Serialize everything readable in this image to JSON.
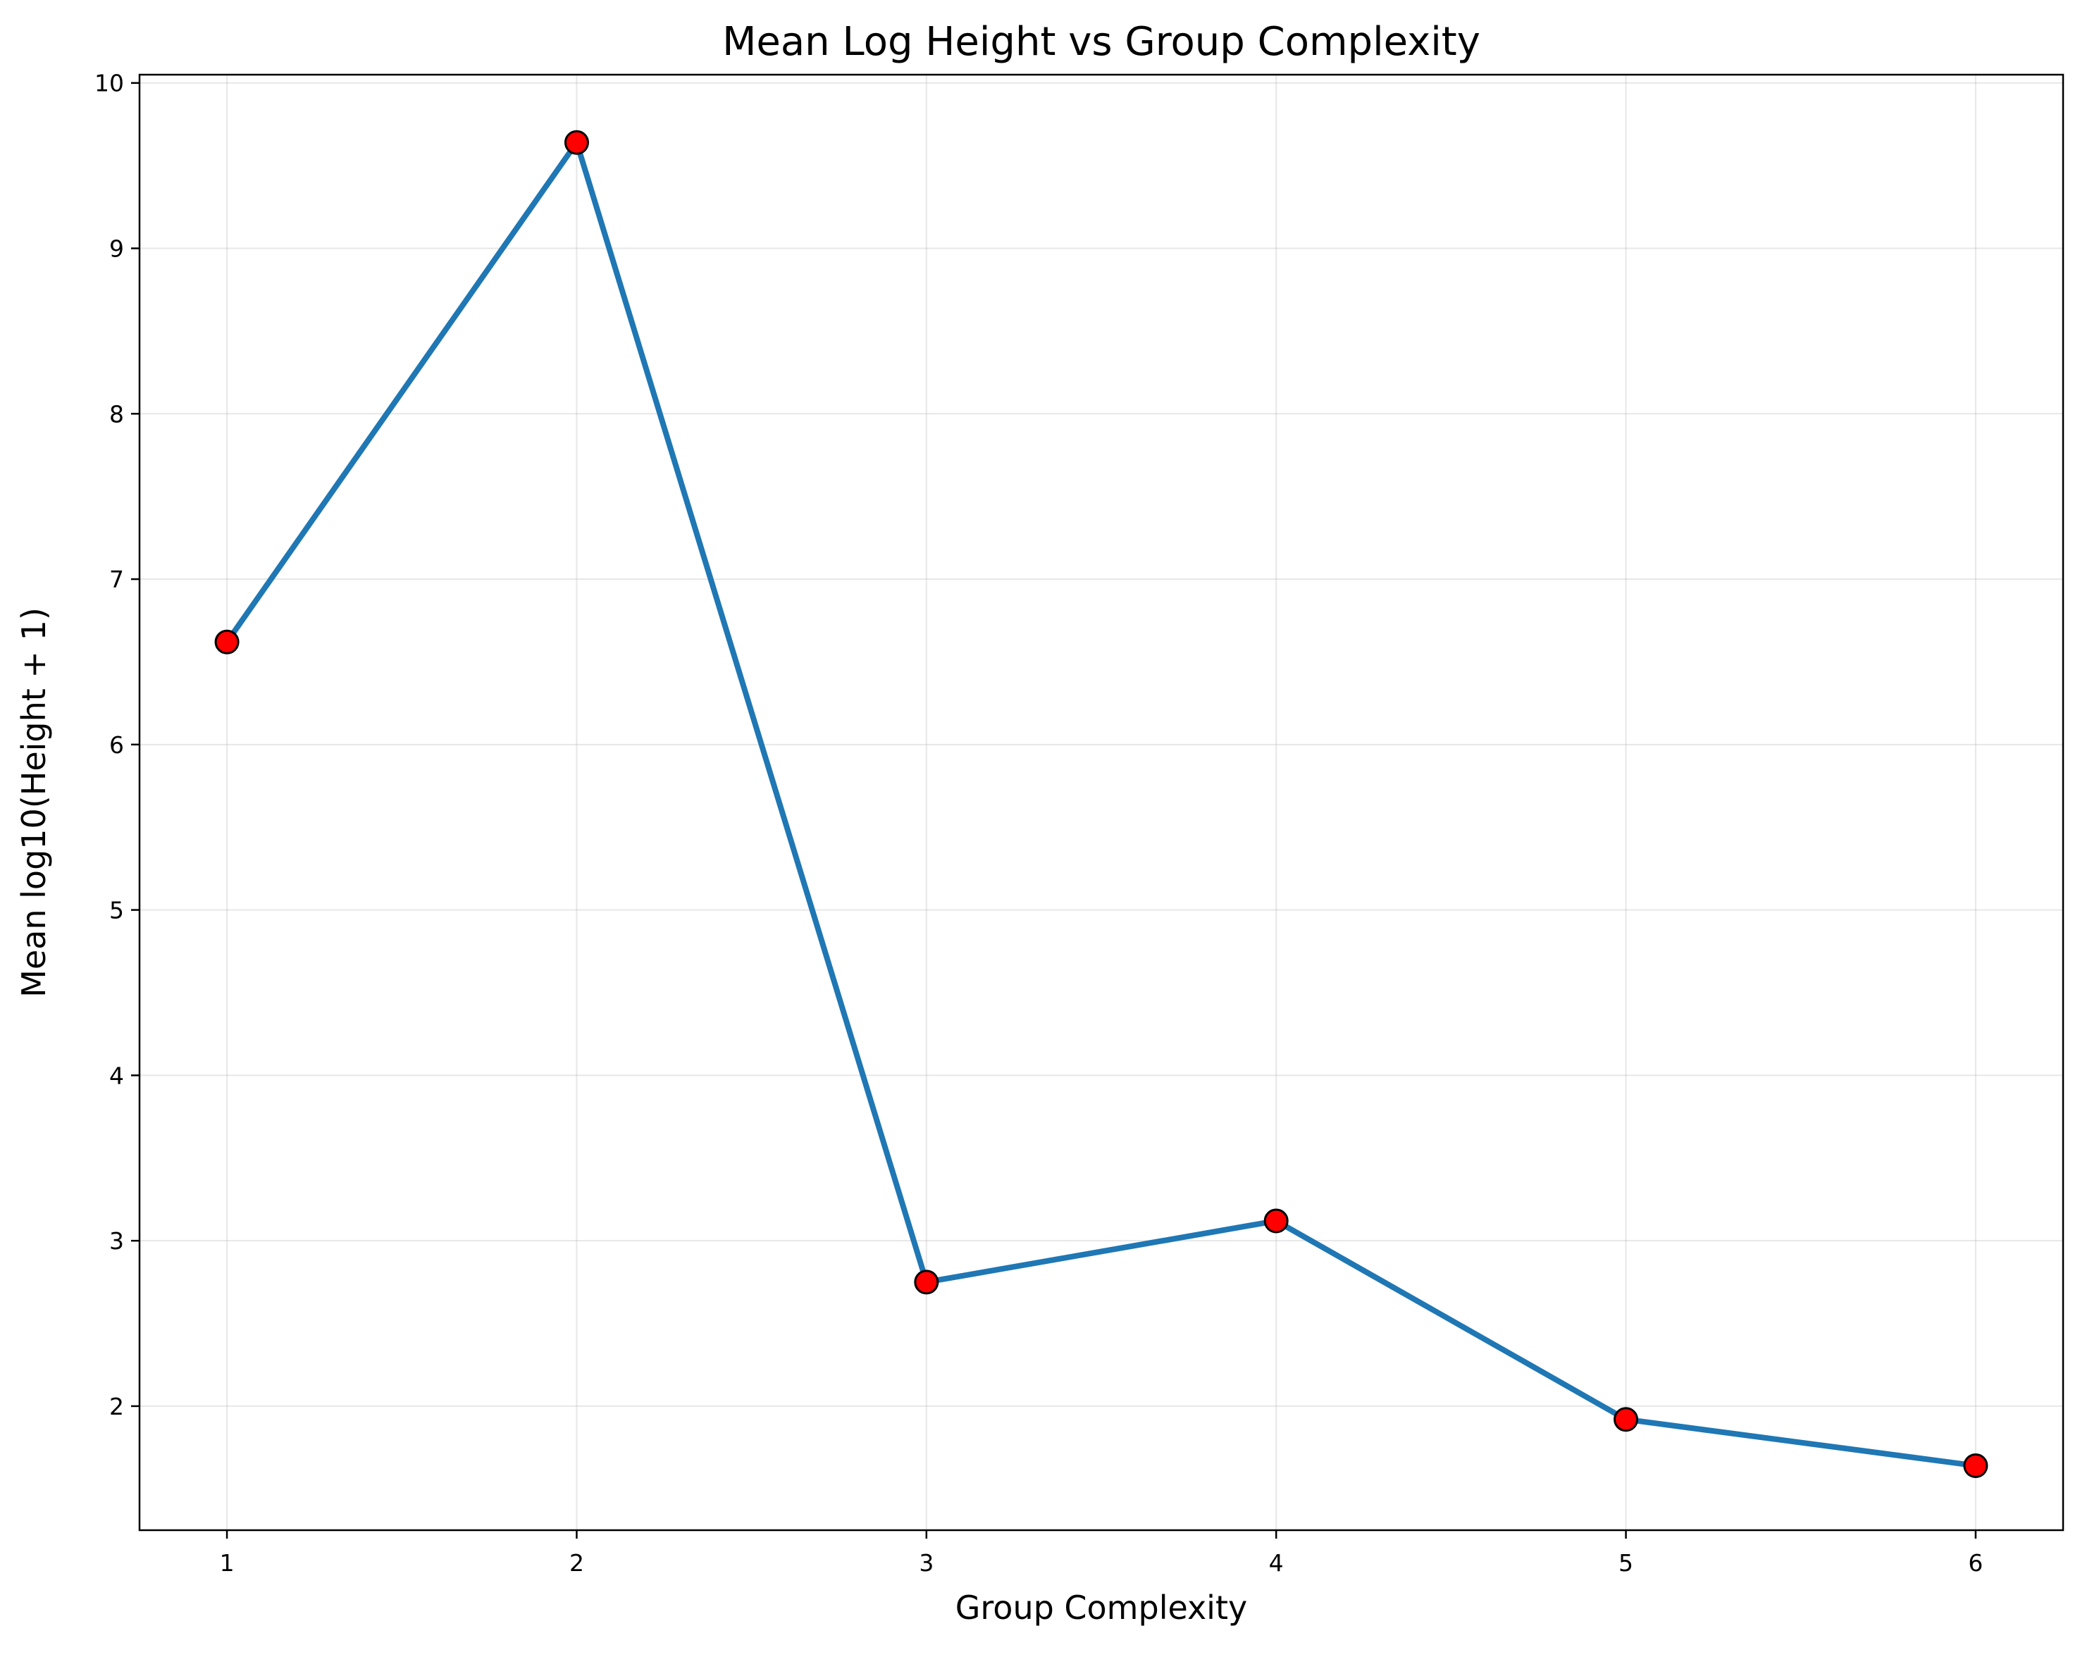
{
  "chart_data": {
    "type": "line",
    "title": "Mean Log Height vs Group Complexity",
    "xlabel": "Group Complexity",
    "ylabel": "Mean log10(Height + 1)",
    "x": [
      1,
      2,
      3,
      4,
      5,
      6
    ],
    "series": [
      {
        "values": [
          6.62,
          9.64,
          2.75,
          3.12,
          1.92,
          1.64
        ]
      }
    ],
    "xticks": [
      "1",
      "2",
      "3",
      "4",
      "5",
      "6"
    ],
    "yticks": [
      "2",
      "3",
      "4",
      "5",
      "6",
      "7",
      "8",
      "9",
      "10"
    ],
    "xlim": [
      0.75,
      6.25
    ],
    "ylim": [
      1.25,
      10.05
    ],
    "grid": true,
    "line_color": "#1f77b4",
    "marker_color": "#ff0000",
    "marker_edge_color": "#000000"
  }
}
